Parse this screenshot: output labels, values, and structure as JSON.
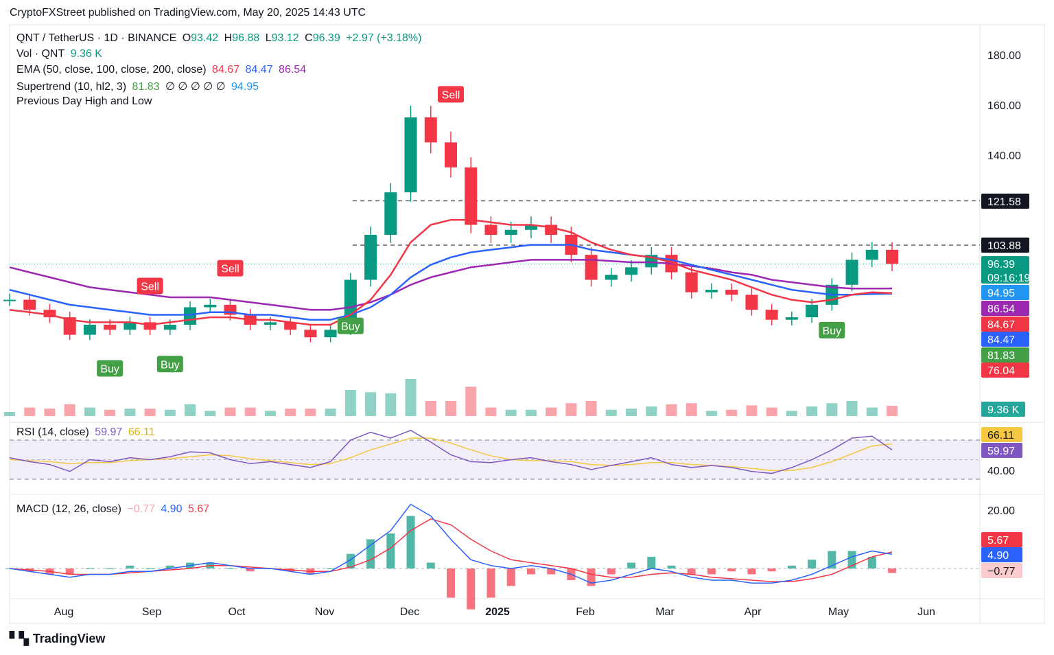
{
  "header": {
    "published": "CryptoFXStreet published on TradingView.com, May 20, 2025 14:43 UTC"
  },
  "legend": {
    "symbol": "QNT / TetherUS · 1D · BINANCE",
    "o_label": "O",
    "o": "93.42",
    "h_label": "H",
    "h": "96.88",
    "l_label": "L",
    "l": "93.12",
    "c_label": "C",
    "c": "96.39",
    "change": "+2.97 (+3.18%)",
    "vol_label": "Vol · QNT",
    "vol": "9.36 K",
    "ema_label": "EMA (50, close, 100, close, 200, close)",
    "ema50": "84.67",
    "ema100": "84.47",
    "ema200": "86.54",
    "st_label": "Supertrend (10, hl2, 3)",
    "st_val": "81.83",
    "st_na": "∅ ∅ ∅ ∅ ∅",
    "st_val2": "94.95",
    "pdhl": "Previous Day High and Low",
    "rsi_label": "RSI (14, close)",
    "rsi": "59.97",
    "rsi_ma": "66.11",
    "macd_label": "MACD (12, 26, close)",
    "macd_hist": "−0.77",
    "macd": "4.90",
    "macd_signal": "5.67"
  },
  "footer": {
    "brand": "TradingView"
  },
  "colors": {
    "up": "#089981",
    "down": "#f23645",
    "ema50": "#f23645",
    "ema100": "#2962ff",
    "ema200": "#9c27b0",
    "st_up": "#43a047",
    "st_down": "#f23645",
    "rsi": "#7e57c2",
    "rsi_ma": "#f5c842"
  },
  "chart_data": {
    "type": "line",
    "title": "QNT / TetherUS · 1D · BINANCE",
    "price_ticks": [
      "180.00",
      "160.00",
      "140.00",
      "121.58",
      "103.88",
      "96.39",
      "94.95",
      "86.54",
      "84.67",
      "84.47",
      "81.83",
      "76.04"
    ],
    "countdown": "09:16:19",
    "vol_tag": "9.36 K",
    "rsi_ticks": [
      "66.11",
      "59.97",
      "40.00"
    ],
    "macd_ticks": [
      "20.00",
      "5.67",
      "4.90",
      "−0.77"
    ],
    "x_ticks": [
      "Aug",
      "Sep",
      "Oct",
      "Nov",
      "Dec",
      "2025",
      "Feb",
      "Mar",
      "Apr",
      "May",
      "Jun"
    ],
    "levels": [
      121.58,
      103.88
    ],
    "signals": [
      {
        "label": "Buy",
        "date": "Aug 20"
      },
      {
        "label": "Sell",
        "date": "Sep 5"
      },
      {
        "label": "Buy",
        "date": "Sep 9"
      },
      {
        "label": "Sell",
        "date": "Oct 1"
      },
      {
        "label": "Buy",
        "date": "Nov 10"
      },
      {
        "label": "Sell",
        "date": "Dec 14"
      },
      {
        "label": "Buy",
        "date": "May 1"
      }
    ],
    "close_series": {
      "name": "QNT/USDT close",
      "x": [
        "Jul 15",
        "Jul 22",
        "Jul 29",
        "Aug 5",
        "Aug 12",
        "Aug 19",
        "Aug 26",
        "Sep 2",
        "Sep 9",
        "Sep 16",
        "Sep 23",
        "Sep 30",
        "Oct 7",
        "Oct 14",
        "Oct 21",
        "Oct 28",
        "Nov 4",
        "Nov 11",
        "Nov 18",
        "Nov 25",
        "Dec 2",
        "Dec 9",
        "Dec 16",
        "Dec 23",
        "Dec 30",
        "Jan 6",
        "Jan 13",
        "Jan 20",
        "Jan 27",
        "Feb 3",
        "Feb 10",
        "Feb 17",
        "Feb 24",
        "Mar 3",
        "Mar 10",
        "Mar 17",
        "Mar 24",
        "Mar 31",
        "Apr 7",
        "Apr 14",
        "Apr 21",
        "Apr 28",
        "May 5",
        "May 12",
        "May 19"
      ],
      "values": [
        82,
        78,
        75,
        68,
        72,
        70,
        73,
        70,
        72,
        79,
        80,
        76,
        72,
        73,
        70,
        67,
        70,
        90,
        108,
        125,
        155,
        145,
        135,
        112,
        108,
        110,
        112,
        108,
        100,
        90,
        92,
        95,
        100,
        93,
        85,
        86,
        84,
        78,
        74,
        75,
        80,
        88,
        98,
        102,
        96.39
      ]
    },
    "ema50": [
      78,
      77,
      76,
      74,
      73,
      73,
      73,
      72,
      73,
      74,
      75,
      75,
      74,
      74,
      73,
      72,
      72,
      76,
      82,
      92,
      105,
      112,
      114,
      114,
      113,
      112,
      112,
      111,
      109,
      105,
      102,
      100,
      99,
      97,
      94,
      92,
      90,
      87,
      84,
      82,
      81,
      82,
      84,
      85,
      84.67
    ],
    "ema100": [
      86,
      84,
      82,
      80,
      79,
      78,
      77,
      76,
      76,
      76,
      77,
      77,
      76,
      76,
      75,
      74,
      74,
      76,
      79,
      84,
      91,
      96,
      99,
      101,
      102,
      103,
      104,
      104,
      104,
      102,
      101,
      100,
      99,
      98,
      96,
      94,
      92,
      90,
      88,
      86,
      85,
      84,
      84,
      84.3,
      84.47
    ],
    "ema200": [
      95,
      93,
      91,
      89,
      87,
      86,
      85,
      84,
      83,
      83,
      83,
      82,
      81,
      80,
      79,
      78,
      78,
      79,
      81,
      84,
      88,
      91,
      93,
      95,
      96,
      97,
      98,
      98,
      98,
      98,
      97.5,
      97,
      97,
      96.5,
      95.5,
      94.5,
      93,
      92,
      90,
      89,
      88,
      87,
      86.5,
      86.5,
      86.54
    ],
    "rsi": [
      52,
      48,
      45,
      38,
      50,
      48,
      52,
      50,
      53,
      58,
      57,
      50,
      46,
      48,
      45,
      42,
      48,
      70,
      78,
      72,
      80,
      68,
      55,
      48,
      47,
      50,
      52,
      48,
      45,
      40,
      44,
      48,
      52,
      45,
      42,
      44,
      42,
      38,
      36,
      42,
      50,
      60,
      72,
      74,
      59.97
    ],
    "rsi_ma": [
      50,
      49,
      48,
      46,
      47,
      47,
      49,
      50,
      51,
      53,
      55,
      54,
      51,
      49,
      47,
      45,
      46,
      52,
      60,
      66,
      72,
      72,
      67,
      60,
      54,
      50,
      49,
      49,
      48,
      45,
      44,
      45,
      47,
      47,
      45,
      44,
      43,
      41,
      39,
      39,
      42,
      48,
      56,
      64,
      66.11
    ],
    "macd": [
      0,
      -1,
      -2,
      -3,
      -2,
      -2,
      -1,
      -1,
      0,
      1,
      2,
      1,
      0,
      0,
      -1,
      -2,
      -1,
      3,
      8,
      13,
      22,
      18,
      10,
      3,
      1,
      0,
      1,
      0,
      -2,
      -5,
      -4,
      -2,
      0,
      -1,
      -3,
      -4,
      -4,
      -5,
      -5,
      -4,
      -2,
      1,
      4,
      6,
      4.9
    ],
    "macd_signal": [
      0,
      -0.5,
      -1,
      -2,
      -2,
      -2,
      -1.5,
      -1,
      -0.5,
      0,
      1,
      1,
      0.5,
      0,
      -0.5,
      -1,
      -1,
      0.5,
      3,
      7,
      13,
      17,
      15,
      10,
      6,
      3,
      2,
      1,
      0,
      -2,
      -3,
      -3,
      -2,
      -1.5,
      -2,
      -3,
      -3.5,
      -4,
      -4.5,
      -4.5,
      -3.5,
      -2,
      1,
      4,
      5.67
    ]
  }
}
